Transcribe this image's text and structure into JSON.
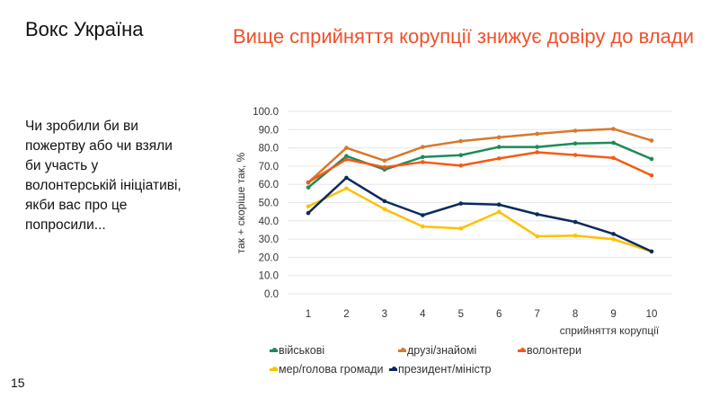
{
  "brand": "Вокс Україна",
  "title": "Вище сприйняття корупції знижує довіру до влади",
  "question": "Чи зробили би ви пожертву або чи взяли би участь у волонтерській ініціативі, якби вас про це попросили...",
  "page_number": "15",
  "chart_data": {
    "type": "line",
    "title": "",
    "xlabel": "сприйняття корупції",
    "ylabel": "так + скоріше так, %",
    "x": [
      1,
      2,
      3,
      4,
      5,
      6,
      7,
      8,
      9,
      10
    ],
    "ylim": [
      0,
      100
    ],
    "yticks": [
      "0.0",
      "10.0",
      "20.0",
      "30.0",
      "40.0",
      "50.0",
      "60.0",
      "70.0",
      "80.0",
      "90.0",
      "100.0"
    ],
    "grid": true,
    "legend_position": "bottom",
    "series": [
      {
        "name": "військові",
        "color": "#1e8a5a",
        "values": [
          58.3,
          75.5,
          68.1,
          75.0,
          76.0,
          80.5,
          80.5,
          82.4,
          82.8,
          73.9
        ]
      },
      {
        "name": "друзі/знайомі",
        "color": "#d9782a",
        "values": [
          61.0,
          80.0,
          73.0,
          80.5,
          83.7,
          85.8,
          87.7,
          89.4,
          90.4,
          84.0
        ]
      },
      {
        "name": "волонтери",
        "color": "#f55a14",
        "values": [
          61.1,
          73.7,
          69.4,
          72.2,
          70.3,
          74.2,
          77.6,
          76.1,
          74.5,
          64.9
        ]
      },
      {
        "name": "мер/голова громади",
        "color": "#ffc000",
        "values": [
          47.9,
          57.8,
          46.4,
          36.9,
          35.8,
          44.9,
          31.5,
          31.9,
          29.9,
          23.2
        ]
      },
      {
        "name": "президент/міністр",
        "color": "#0b2a5e",
        "values": [
          44.3,
          63.6,
          50.8,
          43.1,
          49.5,
          48.9,
          43.6,
          39.4,
          32.8,
          23.2
        ]
      }
    ]
  }
}
